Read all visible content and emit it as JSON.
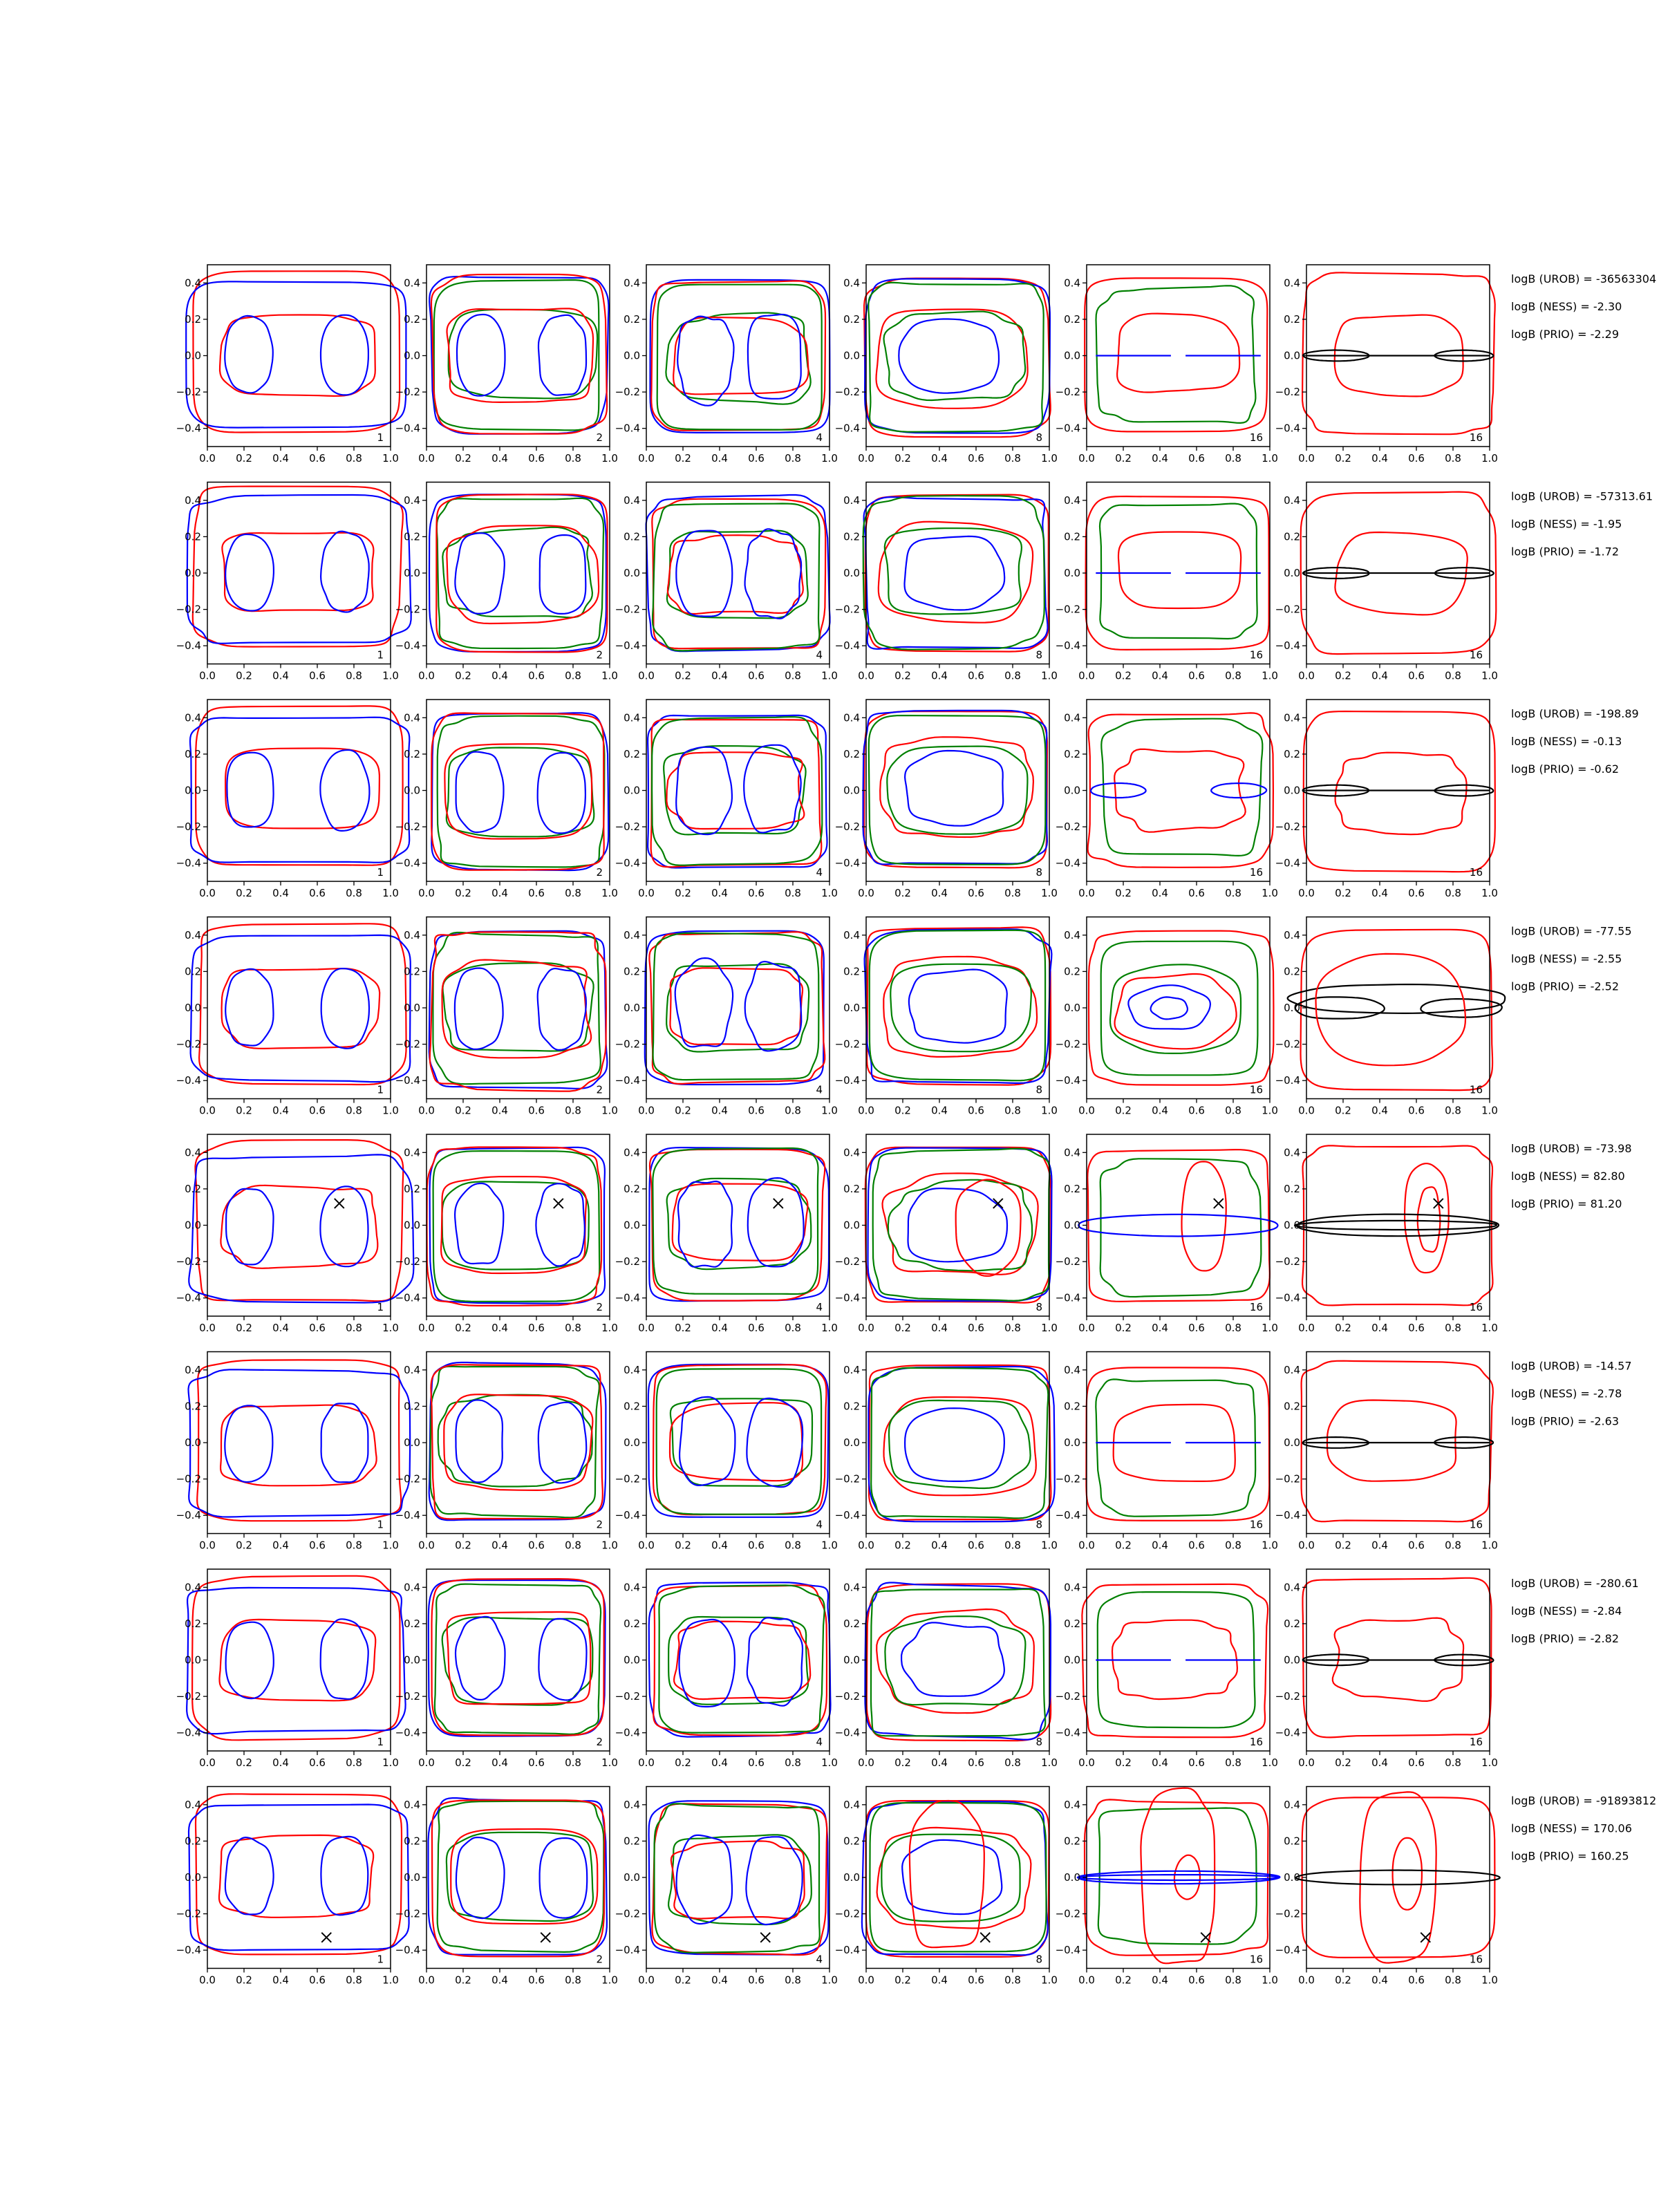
{
  "chart_data": {
    "type": "contour-grid",
    "rows": 8,
    "cols": 6,
    "xlim": [
      0.0,
      1.0
    ],
    "ylim": [
      -0.5,
      0.5
    ],
    "xticks": [
      "0.0",
      "0.2",
      "0.4",
      "0.6",
      "0.8",
      "1.0"
    ],
    "yticks": [
      "0.4",
      "0.2",
      "0.0",
      "−0.2",
      "−0.4"
    ],
    "column_labels": [
      "1",
      "2",
      "4",
      "8",
      "16",
      "16"
    ],
    "colors": {
      "red": "#ff0000",
      "blue": "#0000ff",
      "green": "#008000",
      "black": "#000000"
    },
    "annotations": [
      [
        "logB (UROB) = -36563304",
        "logB (NESS) = -2.30",
        "logB (PRIO) = -2.29"
      ],
      [
        "logB (UROB) = -57313.61",
        "logB (NESS) = -1.95",
        "logB (PRIO) = -1.72"
      ],
      [
        "logB (UROB) = -198.89",
        "logB (NESS) = -0.13",
        "logB (PRIO) = -0.62"
      ],
      [
        "logB (UROB) = -77.55",
        "logB (NESS) = -2.55",
        "logB (PRIO) = -2.52"
      ],
      [
        "logB (UROB) = -73.98",
        "logB (NESS) = 82.80",
        "logB (PRIO) = 81.20"
      ],
      [
        "logB (UROB) = -14.57",
        "logB (NESS) = -2.78",
        "logB (PRIO) = -2.63"
      ],
      [
        "logB (UROB) = -280.61",
        "logB (NESS) = -2.84",
        "logB (PRIO) = -2.82"
      ],
      [
        "logB (UROB) = -91893812",
        "logB (NESS) = 170.06",
        "logB (PRIO) = 160.25"
      ]
    ],
    "markers": [
      {
        "row": 4,
        "x": 0.72,
        "y": 0.12,
        "symbol": "x"
      },
      {
        "row": 7,
        "x": 0.65,
        "y": -0.33,
        "symbol": "x"
      }
    ],
    "row_features": [
      {
        "col5": "blue-line",
        "col6": "black-thin"
      },
      {
        "col5": "blue-line",
        "col6": "black-thin"
      },
      {
        "col5": "blue-ellipse",
        "col6": "black-thin"
      },
      {
        "col5": "center-rings",
        "col6": "black-wide"
      },
      {
        "col5": "red-right",
        "col6": "red-right"
      },
      {
        "col5": "blue-line",
        "col6": "black-thin"
      },
      {
        "col5": "blue-line",
        "col6": "black-thin"
      },
      {
        "col5": "red-tall",
        "col6": "red-tall"
      }
    ]
  }
}
